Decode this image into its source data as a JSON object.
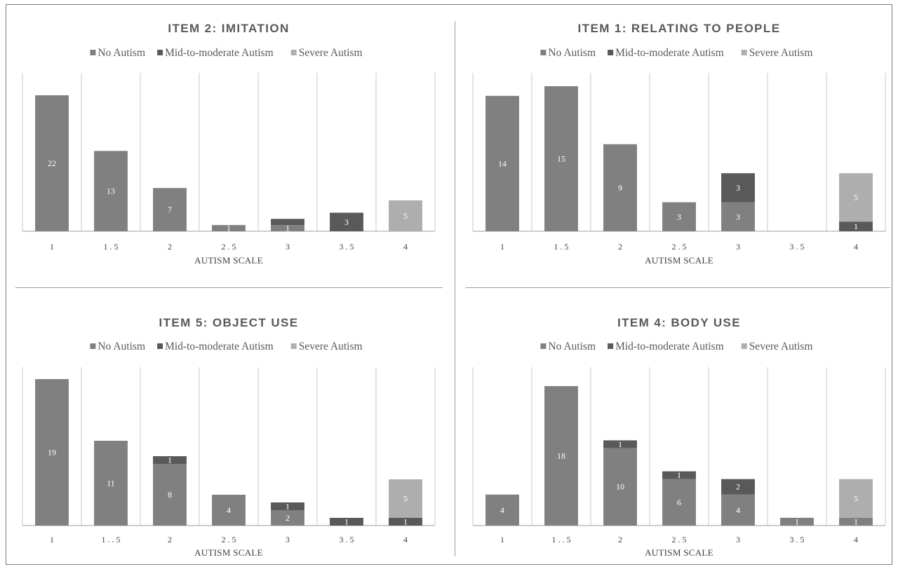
{
  "colors": {
    "no_autism": "#808080",
    "mid_moderate": "#595959",
    "severe": "#aeaeae",
    "gridline": "#c8c8c8",
    "axis": "#9c9c9c"
  },
  "chart_data": [
    {
      "type": "bar",
      "stacked": true,
      "title": "ITEM 2: IMITATION",
      "xlabel": "AUTISM SCALE",
      "legend_position": "top-center",
      "categories": [
        "1",
        "1 . 5",
        "2",
        "2 . 5",
        "3",
        "3 . 5",
        "4"
      ],
      "ylim": [
        0,
        22
      ],
      "series": [
        {
          "name": "No Autism",
          "values": [
            22,
            13,
            7,
            1,
            1,
            0,
            0
          ],
          "labels": [
            "22",
            "13",
            "7",
            "1",
            "1",
            "",
            ""
          ]
        },
        {
          "name": "Mid-to-moderate Autism",
          "values": [
            0,
            0,
            0,
            0,
            1,
            3,
            0
          ],
          "labels": [
            "",
            "",
            "",
            "",
            "",
            "3",
            ""
          ]
        },
        {
          "name": "Severe Autism",
          "values": [
            0,
            0,
            0,
            0,
            0,
            0,
            5
          ],
          "labels": [
            "",
            "",
            "",
            "",
            "",
            "",
            "5"
          ]
        }
      ]
    },
    {
      "type": "bar",
      "stacked": true,
      "title": "ITEM 1: RELATING TO PEOPLE",
      "xlabel": "AUTISM SCALE",
      "legend_position": "top-center",
      "categories": [
        "1",
        "1 . 5",
        "2",
        "2 . 5",
        "3",
        "3 . 5",
        "4"
      ],
      "ylim": [
        0,
        15
      ],
      "series": [
        {
          "name": "No Autism",
          "values": [
            14,
            15,
            9,
            3,
            3,
            0,
            0
          ],
          "labels": [
            "14",
            "15",
            "9",
            "3",
            "3",
            "",
            ""
          ]
        },
        {
          "name": "Mid-to-moderate Autism",
          "values": [
            0,
            0,
            0,
            0,
            3,
            0,
            1
          ],
          "labels": [
            "",
            "",
            "",
            "",
            "3",
            "",
            "1"
          ]
        },
        {
          "name": "Severe Autism",
          "values": [
            0,
            0,
            0,
            0,
            0,
            0,
            5
          ],
          "labels": [
            "",
            "",
            "",
            "",
            "",
            "",
            "5"
          ]
        }
      ]
    },
    {
      "type": "bar",
      "stacked": true,
      "title": "ITEM 5: OBJECT USE",
      "xlabel": "AUTISM SCALE",
      "legend_position": "top-center",
      "categories": [
        "1",
        "1 . . 5",
        "2",
        "2 . 5",
        "3",
        "3 . 5",
        "4"
      ],
      "ylim": [
        0,
        19
      ],
      "series": [
        {
          "name": "No Autism",
          "values": [
            19,
            11,
            8,
            4,
            2,
            0,
            0
          ],
          "labels": [
            "19",
            "11",
            "8",
            "4",
            "2",
            "",
            ""
          ]
        },
        {
          "name": "Mid-to-moderate Autism",
          "values": [
            0,
            0,
            1,
            0,
            1,
            1,
            1
          ],
          "labels": [
            "",
            "",
            "1",
            "",
            "1",
            "1",
            "1"
          ]
        },
        {
          "name": "Severe Autism",
          "values": [
            0,
            0,
            0,
            0,
            0,
            0,
            5
          ],
          "labels": [
            "",
            "",
            "",
            "",
            "",
            "",
            "5"
          ]
        }
      ]
    },
    {
      "type": "bar",
      "stacked": true,
      "title": "ITEM 4: BODY USE",
      "xlabel": "AUTISM SCALE",
      "legend_position": "top-center",
      "categories": [
        "1",
        "1 . . 5",
        "2",
        "2 . 5",
        "3",
        "3 . 5",
        "4"
      ],
      "ylim": [
        0,
        18
      ],
      "series": [
        {
          "name": "No Autism",
          "values": [
            4,
            18,
            10,
            6,
            4,
            1,
            1
          ],
          "labels": [
            "4",
            "18",
            "10",
            "6",
            "4",
            "1",
            "1"
          ]
        },
        {
          "name": "Mid-to-moderate Autism",
          "values": [
            0,
            0,
            1,
            1,
            2,
            0,
            0
          ],
          "labels": [
            "",
            "",
            "1",
            "1",
            "2",
            "",
            ""
          ]
        },
        {
          "name": "Severe Autism",
          "values": [
            0,
            0,
            0,
            0,
            0,
            0,
            5
          ],
          "labels": [
            "",
            "",
            "",
            "",
            "",
            "",
            "5"
          ]
        }
      ]
    }
  ]
}
